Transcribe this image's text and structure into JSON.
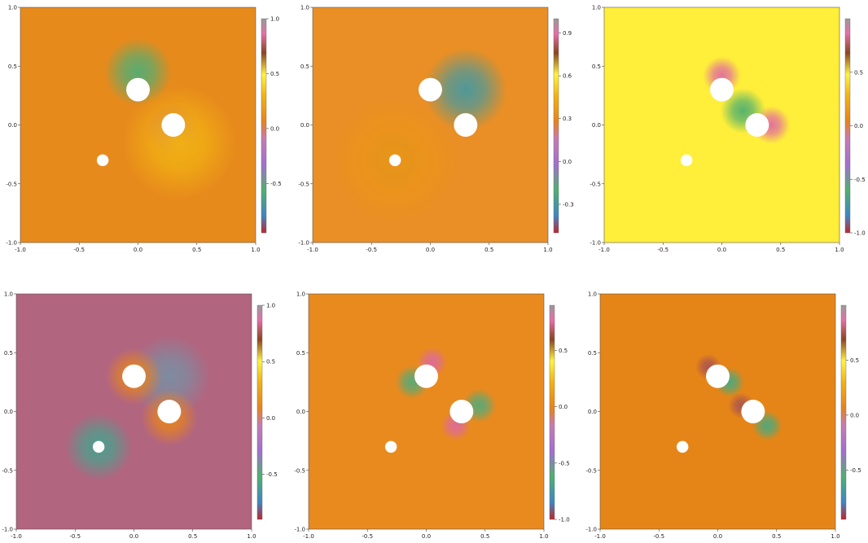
{
  "chart_data": [
    {
      "type": "heatmap",
      "title": "",
      "xlabel": "",
      "ylabel": "",
      "xlim": [
        -1.0,
        1.0
      ],
      "ylim": [
        -1.0,
        1.0
      ],
      "x_ticks": [
        "-1.0",
        "-0.5",
        "0.0",
        "0.5",
        "1.0"
      ],
      "y_ticks": [
        "-1.0",
        "-0.5",
        "0.0",
        "0.5",
        "1.0"
      ],
      "colorbar": {
        "ticks": [
          1.0,
          0.5,
          0.0,
          -0.5
        ],
        "labels": [
          "1.0",
          "0.5",
          "0.0",
          "-0.5"
        ],
        "range": [
          -0.95,
          1.0
        ]
      },
      "background_color": "#e78a1c",
      "obstacles": [
        {
          "x": 0.0,
          "y": 0.3,
          "r": 0.1
        },
        {
          "x": 0.3,
          "y": 0.0,
          "r": 0.1
        },
        {
          "x": -0.3,
          "y": -0.3,
          "r": 0.05
        }
      ],
      "features": [
        {
          "x": 0.0,
          "y": 0.45,
          "value": -0.55,
          "spread": 0.18
        },
        {
          "x": 0.3,
          "y": -0.05,
          "value": 0.8,
          "spread": 0.14
        },
        {
          "x": 0.35,
          "y": -0.15,
          "value": 0.3,
          "spread": 0.3
        }
      ]
    },
    {
      "type": "heatmap",
      "title": "",
      "xlabel": "",
      "ylabel": "",
      "xlim": [
        -1.0,
        1.0
      ],
      "ylim": [
        -1.0,
        1.0
      ],
      "x_ticks": [
        "-1.0",
        "-0.5",
        "0.0",
        "0.5",
        "1.0"
      ],
      "y_ticks": [
        "-1.0",
        "-0.5",
        "0.0",
        "0.5",
        "1.0"
      ],
      "colorbar": {
        "ticks": [
          0.9,
          0.6,
          0.3,
          0.0,
          -0.3
        ],
        "labels": [
          "0.9",
          "0.6",
          "0.3",
          "0.0",
          "-0.3"
        ],
        "range": [
          -0.5,
          1.0
        ]
      },
      "background_color": "#e98f25",
      "obstacles": [
        {
          "x": 0.0,
          "y": 0.3,
          "r": 0.1
        },
        {
          "x": 0.3,
          "y": 0.0,
          "r": 0.1
        },
        {
          "x": -0.3,
          "y": -0.3,
          "r": 0.05
        }
      ],
      "features": [
        {
          "x": 0.3,
          "y": 0.3,
          "value": -0.3,
          "spread": 0.22
        },
        {
          "x": -0.3,
          "y": -0.3,
          "value": 0.7,
          "spread": 0.16
        },
        {
          "x": -0.3,
          "y": -0.3,
          "value": 0.35,
          "spread": 0.33
        }
      ]
    },
    {
      "type": "heatmap",
      "title": "",
      "xlabel": "",
      "ylabel": "",
      "xlim": [
        -1.0,
        1.0
      ],
      "ylim": [
        -1.0,
        1.0
      ],
      "x_ticks": [
        "-1.0",
        "-0.5",
        "0.0",
        "0.5",
        "1.0"
      ],
      "y_ticks": [
        "-1.0",
        "-0.5",
        "0.0",
        "0.5",
        "1.0"
      ],
      "colorbar": {
        "ticks": [
          0.5,
          0.0,
          -0.5,
          -1.0
        ],
        "labels": [
          "0.5",
          "0.0",
          "-0.5",
          "-1.0"
        ],
        "range": [
          -1.0,
          1.0
        ]
      },
      "background_color": "#ffee3a",
      "obstacles": [
        {
          "x": 0.0,
          "y": 0.3,
          "r": 0.1
        },
        {
          "x": 0.3,
          "y": 0.0,
          "r": 0.1
        },
        {
          "x": -0.3,
          "y": -0.3,
          "r": 0.05
        }
      ],
      "features": [
        {
          "x": 0.0,
          "y": 0.42,
          "value": 0.85,
          "spread": 0.1
        },
        {
          "x": 0.42,
          "y": 0.0,
          "value": 0.85,
          "spread": 0.1
        },
        {
          "x": 0.18,
          "y": 0.12,
          "value": -0.6,
          "spread": 0.12
        }
      ]
    },
    {
      "type": "heatmap",
      "title": "",
      "xlabel": "",
      "ylabel": "",
      "xlim": [
        -1.0,
        1.0
      ],
      "ylim": [
        -1.0,
        1.0
      ],
      "x_ticks": [
        "-1.0",
        "-0.5",
        "0.0",
        "0.5",
        "1.0"
      ],
      "y_ticks": [
        "-1.0",
        "-0.5",
        "0.0",
        "0.5",
        "1.0"
      ],
      "colorbar": {
        "ticks": [
          1.0,
          0.5,
          0.0,
          -0.5
        ],
        "labels": [
          "1.0",
          "0.5",
          "0.0",
          "-0.5"
        ],
        "range": [
          -0.9,
          1.0
        ]
      },
      "background_color": "#b2657f",
      "obstacles": [
        {
          "x": 0.0,
          "y": 0.3,
          "r": 0.1
        },
        {
          "x": 0.3,
          "y": 0.0,
          "r": 0.1
        },
        {
          "x": -0.3,
          "y": -0.3,
          "r": 0.05
        }
      ],
      "features": [
        {
          "x": 0.3,
          "y": 0.3,
          "value": -0.4,
          "spread": 0.22
        },
        {
          "x": -0.3,
          "y": -0.3,
          "value": -0.6,
          "spread": 0.18
        },
        {
          "x": 0.0,
          "y": 0.3,
          "value": 0.1,
          "spread": 0.15
        },
        {
          "x": 0.3,
          "y": -0.05,
          "value": 0.1,
          "spread": 0.15
        }
      ]
    },
    {
      "type": "heatmap",
      "title": "",
      "xlabel": "",
      "ylabel": "",
      "xlim": [
        -1.0,
        1.0
      ],
      "ylim": [
        -1.0,
        1.0
      ],
      "x_ticks": [
        "-1.0",
        "-0.5",
        "0.0",
        "0.5",
        "1.0"
      ],
      "y_ticks": [
        "-1.0",
        "-0.5",
        "0.0",
        "0.5",
        "1.0"
      ],
      "colorbar": {
        "ticks": [
          0.5,
          0.0,
          -0.5,
          -1.0
        ],
        "labels": [
          "0.5",
          "0.0",
          "-0.5",
          "-1.0"
        ],
        "range": [
          -1.0,
          0.9
        ]
      },
      "background_color": "#e98a1f",
      "obstacles": [
        {
          "x": 0.0,
          "y": 0.3,
          "r": 0.1
        },
        {
          "x": 0.3,
          "y": 0.0,
          "r": 0.1
        },
        {
          "x": -0.3,
          "y": -0.3,
          "r": 0.05
        }
      ],
      "features": [
        {
          "x": -0.12,
          "y": 0.25,
          "value": -0.6,
          "spread": 0.09
        },
        {
          "x": 0.45,
          "y": 0.05,
          "value": -0.6,
          "spread": 0.09
        },
        {
          "x": 0.05,
          "y": 0.42,
          "value": 0.75,
          "spread": 0.08
        },
        {
          "x": 0.25,
          "y": -0.12,
          "value": 0.75,
          "spread": 0.08
        }
      ]
    },
    {
      "type": "heatmap",
      "title": "",
      "xlabel": "",
      "ylabel": "",
      "xlim": [
        -1.0,
        1.0
      ],
      "ylim": [
        -1.0,
        1.0
      ],
      "x_ticks": [
        "-1.0",
        "-0.5",
        "0.0",
        "0.5",
        "1.0"
      ],
      "y_ticks": [
        "-1.0",
        "-0.5",
        "0.0",
        "0.5",
        "1.0"
      ],
      "colorbar": {
        "ticks": [
          0.5,
          0.0,
          -0.5
        ],
        "labels": [
          "0.5",
          "0.0",
          "-0.5"
        ],
        "range": [
          -0.95,
          1.0
        ]
      },
      "background_color": "#e68517",
      "obstacles": [
        {
          "x": 0.0,
          "y": 0.3,
          "r": 0.1
        },
        {
          "x": 0.3,
          "y": 0.0,
          "r": 0.1
        },
        {
          "x": -0.3,
          "y": -0.3,
          "r": 0.05
        }
      ],
      "features": [
        {
          "x": 0.1,
          "y": 0.25,
          "value": -0.6,
          "spread": 0.08
        },
        {
          "x": 0.42,
          "y": -0.12,
          "value": -0.6,
          "spread": 0.08
        },
        {
          "x": -0.08,
          "y": 0.38,
          "value": 0.75,
          "spread": 0.07
        },
        {
          "x": 0.2,
          "y": 0.05,
          "value": 0.75,
          "spread": 0.07
        }
      ]
    }
  ]
}
